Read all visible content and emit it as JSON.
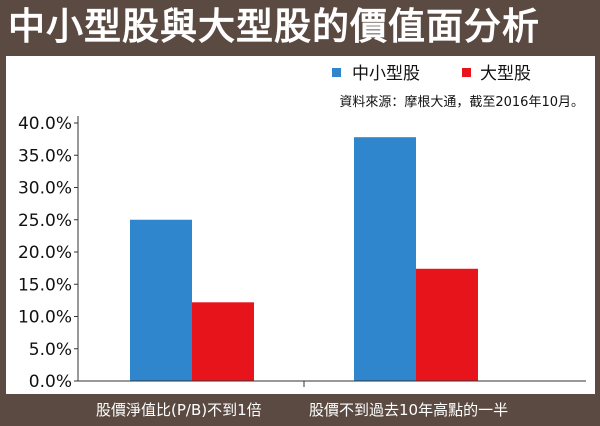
{
  "title": "中小型股與大型股的價值面分析",
  "colors": {
    "small_mid": "#2f86cc",
    "large": "#e8141c",
    "frame": "#5b4a42"
  },
  "chart_data": {
    "type": "bar",
    "title": "中小型股與大型股的價值面分析",
    "categories": [
      "股價淨值比(P/B)不到1倍",
      "股價不到過去10年高點的一半"
    ],
    "series": [
      {
        "name": "中小型股",
        "values": [
          25.0,
          37.8
        ]
      },
      {
        "name": "大型股",
        "values": [
          12.2,
          17.4
        ]
      }
    ],
    "ylim": [
      0,
      40
    ],
    "yticks": [
      "0.0%",
      "5.0%",
      "10.0%",
      "15.0%",
      "20.0%",
      "25.0%",
      "30.0%",
      "35.0%",
      "40.0%"
    ],
    "legend_placement": "top-right",
    "source": "資料來源：摩根大通，截至2016年10月。",
    "grid": false
  }
}
